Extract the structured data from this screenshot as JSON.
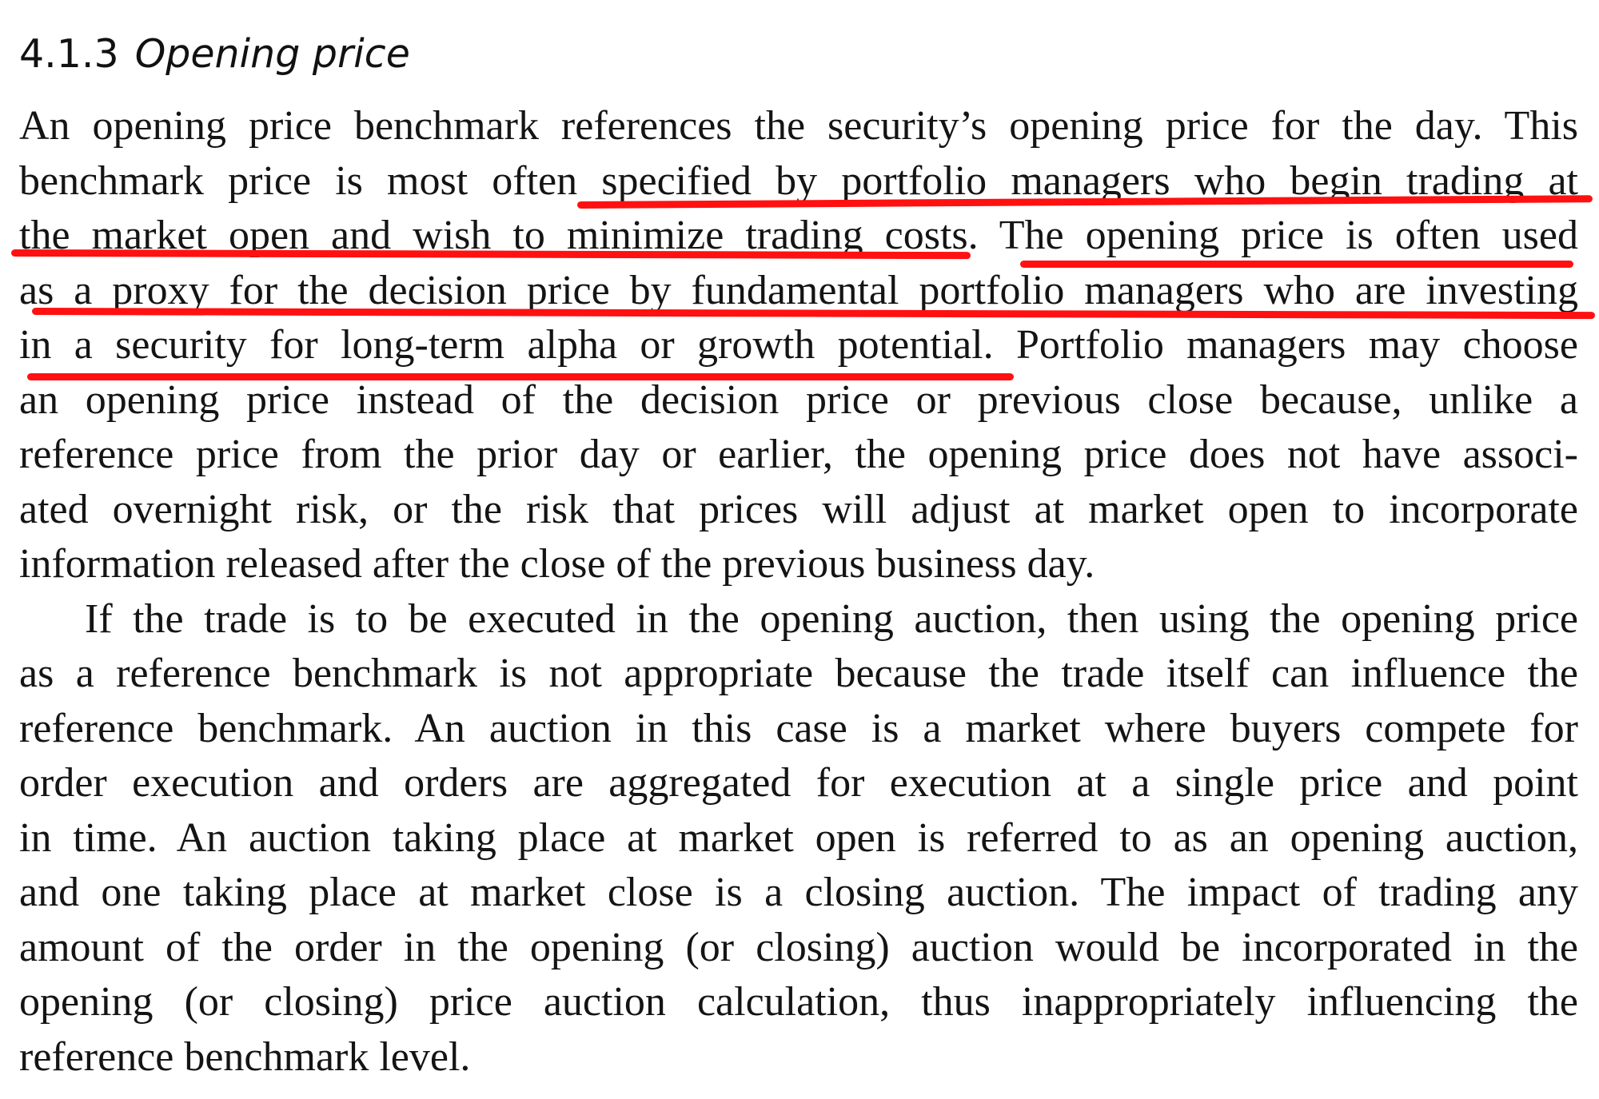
{
  "section": {
    "number": "4.1.3",
    "title": "Opening price"
  },
  "paragraphs": [
    {
      "lines": [
        "An opening price benchmark references the security’s opening price for the day. This",
        "benchmark price is most often specified by portfolio managers who begin trading at",
        "the market open and wish to minimize trading costs. The opening price is often used",
        "as a proxy for the decision price by fundamental portfolio managers who are investing",
        "in a security for long-term alpha or growth potential. Portfolio managers may choose",
        "an opening price instead of the decision price or previous close because, unlike a",
        "reference price from the prior day or earlier, the opening price does not have associ-",
        "ated overnight risk, or the risk that prices will adjust at market open to incorporate",
        "information released after the close of the previous business day."
      ]
    },
    {
      "lines": [
        "If the trade is to be executed in the opening auction, then using the opening price",
        "as a reference benchmark is not appropriate because the trade itself can influence the",
        "reference benchmark. An auction in this case is a market where buyers compete for",
        "order execution and orders are aggregated for execution at a single price and point",
        "in time. An auction taking place at market open is referred to as an opening auction,",
        "and one taking place at market close is a closing auction. The impact of trading any",
        "amount of the order in the opening (or closing) auction would be incorporated in the",
        "opening (or closing) price auction calculation, thus inappropriately influencing the",
        "reference benchmark level."
      ]
    }
  ],
  "annotations": {
    "underline_color": "#ff1111"
  }
}
